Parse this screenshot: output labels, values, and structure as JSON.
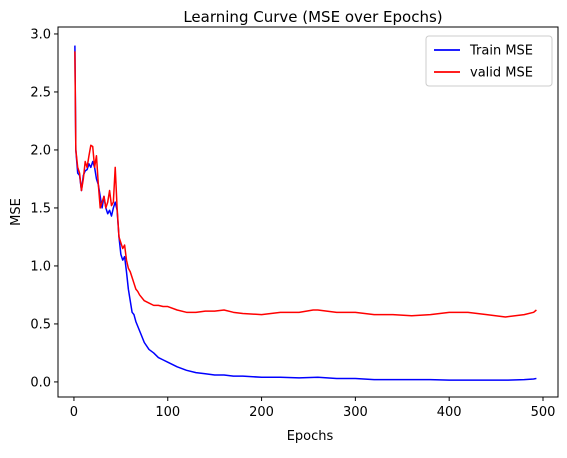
{
  "chart_data": {
    "type": "line",
    "title": "Learning Curve (MSE over Epochs)",
    "xlabel": "Epochs",
    "ylabel": "MSE",
    "xlim": [
      -17,
      516
    ],
    "ylim": [
      -0.13,
      3.06
    ],
    "xticks": [
      0,
      100,
      200,
      300,
      400,
      500
    ],
    "yticks": [
      0.0,
      0.5,
      1.0,
      1.5,
      2.0,
      2.5,
      3.0
    ],
    "xtick_labels": [
      "0",
      "100",
      "200",
      "300",
      "400",
      "500"
    ],
    "ytick_labels": [
      "0.0",
      "0.5",
      "1.0",
      "1.5",
      "2.0",
      "2.5",
      "3.0"
    ],
    "grid": false,
    "legend_position": "top-right",
    "series": [
      {
        "name": "Train MSE",
        "color": "#0000ff",
        "x": [
          1,
          2,
          4,
          6,
          8,
          10,
          12,
          14,
          16,
          18,
          20,
          22,
          24,
          26,
          28,
          30,
          32,
          34,
          36,
          38,
          40,
          42,
          44,
          46,
          48,
          50,
          52,
          54,
          56,
          58,
          60,
          62,
          64,
          66,
          68,
          70,
          72,
          75,
          80,
          85,
          90,
          95,
          100,
          110,
          120,
          130,
          140,
          150,
          160,
          170,
          180,
          200,
          220,
          240,
          260,
          280,
          300,
          320,
          340,
          360,
          380,
          400,
          420,
          440,
          460,
          480,
          490,
          493
        ],
        "y": [
          2.9,
          2.0,
          1.8,
          1.78,
          1.65,
          1.78,
          1.82,
          1.83,
          1.88,
          1.85,
          1.9,
          1.85,
          1.75,
          1.7,
          1.6,
          1.5,
          1.6,
          1.5,
          1.45,
          1.48,
          1.43,
          1.5,
          1.55,
          1.48,
          1.25,
          1.1,
          1.05,
          1.08,
          0.95,
          0.8,
          0.7,
          0.6,
          0.58,
          0.52,
          0.48,
          0.44,
          0.4,
          0.34,
          0.28,
          0.25,
          0.21,
          0.19,
          0.17,
          0.13,
          0.1,
          0.08,
          0.07,
          0.06,
          0.06,
          0.05,
          0.05,
          0.04,
          0.04,
          0.035,
          0.04,
          0.03,
          0.03,
          0.02,
          0.02,
          0.02,
          0.02,
          0.015,
          0.015,
          0.015,
          0.015,
          0.02,
          0.025,
          0.03
        ]
      },
      {
        "name": "valid MSE",
        "color": "#ff0000",
        "x": [
          1,
          2,
          4,
          6,
          8,
          10,
          12,
          14,
          16,
          18,
          20,
          22,
          24,
          26,
          28,
          30,
          32,
          34,
          36,
          38,
          40,
          42,
          44,
          46,
          48,
          50,
          52,
          54,
          56,
          58,
          60,
          62,
          64,
          66,
          68,
          70,
          75,
          80,
          85,
          90,
          95,
          100,
          110,
          120,
          130,
          140,
          150,
          160,
          170,
          180,
          200,
          220,
          240,
          255,
          260,
          280,
          300,
          320,
          340,
          360,
          380,
          400,
          420,
          440,
          460,
          480,
          490,
          493
        ],
        "y": [
          2.85,
          2.0,
          1.85,
          1.8,
          1.65,
          1.75,
          1.9,
          1.85,
          1.95,
          2.04,
          2.03,
          1.85,
          1.95,
          1.7,
          1.5,
          1.55,
          1.6,
          1.5,
          1.55,
          1.65,
          1.52,
          1.55,
          1.85,
          1.5,
          1.25,
          1.2,
          1.15,
          1.18,
          1.05,
          0.98,
          0.95,
          0.9,
          0.85,
          0.8,
          0.78,
          0.75,
          0.7,
          0.68,
          0.66,
          0.66,
          0.65,
          0.65,
          0.62,
          0.6,
          0.6,
          0.61,
          0.61,
          0.62,
          0.6,
          0.59,
          0.58,
          0.6,
          0.6,
          0.62,
          0.62,
          0.6,
          0.6,
          0.58,
          0.58,
          0.57,
          0.58,
          0.6,
          0.6,
          0.58,
          0.56,
          0.58,
          0.6,
          0.62
        ]
      }
    ]
  }
}
